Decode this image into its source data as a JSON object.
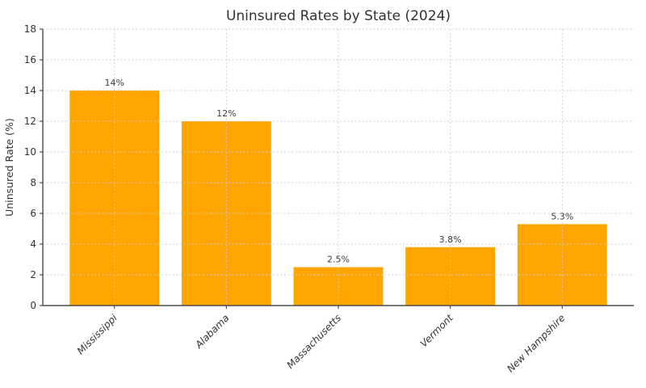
{
  "chart_data": {
    "type": "bar",
    "title": "Uninsured Rates by State (2024)",
    "categories": [
      "Mississippi",
      "Alabama",
      "Massachusetts",
      "Vermont",
      "New Hampshire"
    ],
    "values": [
      14,
      12,
      2.5,
      3.8,
      5.3
    ],
    "value_labels": [
      "14%",
      "12%",
      "2.5%",
      "3.8%",
      "5.3%"
    ],
    "xlabel": "",
    "ylabel": "Uninsured Rate (%)",
    "ylim": [
      0,
      18
    ],
    "ytick_step": 2,
    "bar_width_fraction": 0.8,
    "grid": "both, dotted, drawn over bars",
    "legend_position": "none",
    "xtick_label_style": "italic, rotated 45deg, anchored right"
  },
  "colors": {
    "bar": "#FFA500",
    "text": "#333333",
    "grid": "#cfcfcf",
    "spine": "#4d4d4d",
    "background": "#ffffff"
  }
}
